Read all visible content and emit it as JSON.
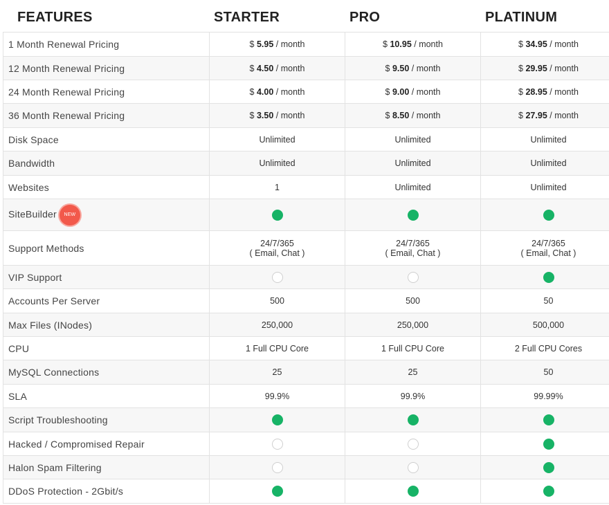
{
  "header": {
    "features": "FEATURES",
    "starter": "STARTER",
    "pro": "PRO",
    "platinum": "PLATINUM"
  },
  "badge": {
    "label": "NEW"
  },
  "rows": [
    {
      "label": "1 Month Renewal Pricing",
      "type": "price",
      "cur": "$",
      "unit": "/ month",
      "values": [
        "5.95",
        "10.95",
        "34.95"
      ]
    },
    {
      "label": "12 Month Renewal Pricing",
      "type": "price",
      "cur": "$",
      "unit": "/ month",
      "values": [
        "4.50",
        "9.50",
        "29.95"
      ]
    },
    {
      "label": "24 Month Renewal Pricing",
      "type": "price",
      "cur": "$",
      "unit": "/ month",
      "values": [
        "4.00",
        "9.00",
        "28.95"
      ]
    },
    {
      "label": "36 Month Renewal Pricing",
      "type": "price",
      "cur": "$",
      "unit": "/ month",
      "values": [
        "3.50",
        "8.50",
        "27.95"
      ]
    },
    {
      "label": "Disk Space",
      "type": "text",
      "values": [
        "Unlimited",
        "Unlimited",
        "Unlimited"
      ]
    },
    {
      "label": "Bandwidth",
      "type": "text",
      "values": [
        "Unlimited",
        "Unlimited",
        "Unlimited"
      ]
    },
    {
      "label": "Websites",
      "type": "text",
      "values": [
        "1",
        "Unlimited",
        "Unlimited"
      ]
    },
    {
      "label": "SiteBuilder",
      "type": "bool",
      "badge": true,
      "values": [
        true,
        true,
        true
      ]
    },
    {
      "label": "Support Methods",
      "type": "text2",
      "values": [
        [
          "24/7/365",
          "( Email, Chat )"
        ],
        [
          "24/7/365",
          "( Email, Chat )"
        ],
        [
          "24/7/365",
          "( Email, Chat )"
        ]
      ]
    },
    {
      "label": "VIP Support",
      "type": "bool",
      "values": [
        false,
        false,
        true
      ]
    },
    {
      "label": "Accounts Per Server",
      "type": "text",
      "values": [
        "500",
        "500",
        "50"
      ]
    },
    {
      "label": "Max Files (INodes)",
      "type": "text",
      "values": [
        "250,000",
        "250,000",
        "500,000"
      ]
    },
    {
      "label": "CPU",
      "type": "text",
      "values": [
        "1 Full CPU Core",
        "1 Full CPU Core",
        "2 Full CPU Cores"
      ]
    },
    {
      "label": "MySQL Connections",
      "type": "text",
      "values": [
        "25",
        "25",
        "50"
      ]
    },
    {
      "label": "SLA",
      "type": "text",
      "values": [
        "99.9%",
        "99.9%",
        "99.99%"
      ]
    },
    {
      "label": "Script Troubleshooting",
      "type": "bool",
      "values": [
        true,
        true,
        true
      ]
    },
    {
      "label": "Hacked / Compromised Repair",
      "type": "bool",
      "values": [
        false,
        false,
        true
      ]
    },
    {
      "label": "Halon Spam Filtering",
      "type": "bool",
      "values": [
        false,
        false,
        true
      ]
    },
    {
      "label": "DDoS Protection - 2Gbit/s",
      "type": "bool",
      "values": [
        true,
        true,
        true
      ]
    }
  ],
  "colors": {
    "check_on": "#17b366",
    "badge": "#f2594b"
  }
}
